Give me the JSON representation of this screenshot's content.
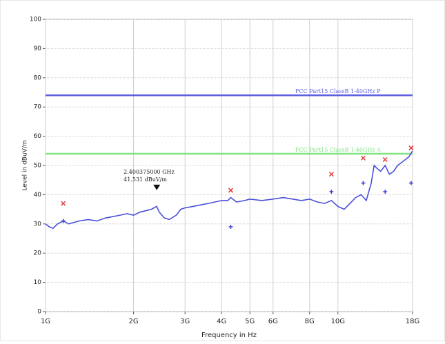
{
  "chart_data": {
    "type": "line",
    "x_label": "Frequency in Hz",
    "y_label": "Level in dBuV/m",
    "log_x": true,
    "grid": true,
    "xlim": [
      1000000000,
      18000000000
    ],
    "ylim": [
      0,
      100
    ],
    "yticks": [
      0,
      10,
      20,
      30,
      40,
      50,
      60,
      70,
      80,
      90,
      100
    ],
    "xticks": [
      {
        "value": 1000000000,
        "label": "1G"
      },
      {
        "value": 2000000000,
        "label": "2G"
      },
      {
        "value": 3000000000,
        "label": "3G"
      },
      {
        "value": 4000000000,
        "label": "4G"
      },
      {
        "value": 5000000000,
        "label": "5G"
      },
      {
        "value": 6000000000,
        "label": "6G"
      },
      {
        "value": 8000000000,
        "label": "8G"
      },
      {
        "value": 10000000000,
        "label": "10G"
      },
      {
        "value": 18000000000,
        "label": "18G"
      }
    ],
    "limits": [
      {
        "label": "FCC Part15 ClassB 1-40GHz P",
        "value": 74,
        "color": "#5b5fe0"
      },
      {
        "label": "FCC Part15 ClassB 1-40GHz A",
        "value": 54,
        "color": "#7fe37f"
      }
    ],
    "trace": {
      "color": "#4a4fd8",
      "x": [
        1000000000,
        1030000000,
        1060000000,
        1100000000,
        1150000000,
        1200000000,
        1300000000,
        1400000000,
        1500000000,
        1600000000,
        1700000000,
        1800000000,
        1900000000,
        2000000000,
        2100000000,
        2200000000,
        2300000000,
        2400000000,
        2450000000,
        2550000000,
        2650000000,
        2800000000,
        2900000000,
        3000000000,
        3200000000,
        3400000000,
        3600000000,
        3800000000,
        4000000000,
        4200000000,
        4300000000,
        4500000000,
        4800000000,
        5000000000,
        5500000000,
        6000000000,
        6500000000,
        7000000000,
        7500000000,
        8000000000,
        8500000000,
        9000000000,
        9500000000,
        10000000000,
        10500000000,
        11000000000,
        11500000000,
        12000000000,
        12500000000,
        13000000000,
        13300000000,
        13600000000,
        14000000000,
        14500000000,
        15000000000,
        15500000000,
        16000000000,
        16500000000,
        17000000000,
        17500000000,
        18000000000
      ],
      "values": [
        30,
        29,
        28.5,
        30,
        31,
        30,
        31,
        31.5,
        31,
        32,
        32.5,
        33,
        33.5,
        33,
        34,
        34.5,
        35,
        36,
        34,
        32,
        31.5,
        33,
        35,
        35.5,
        36,
        36.5,
        37,
        37.5,
        38,
        38,
        39,
        37.5,
        38,
        38.5,
        38,
        38.5,
        39,
        38.5,
        38,
        38.5,
        37.5,
        37,
        38,
        36,
        35,
        37,
        39,
        40,
        38,
        44,
        50,
        49,
        48,
        50,
        47,
        48,
        50,
        51,
        52,
        53,
        55
      ]
    },
    "peaks": {
      "color": "#e03a3a",
      "x": [
        1150000000,
        4300000000,
        9500000000,
        12200000000,
        14500000000,
        17800000000
      ],
      "values": [
        37,
        41.5,
        47,
        52.5,
        52,
        56
      ]
    },
    "averages": {
      "color": "#3a3fd0",
      "x": [
        1150000000,
        4300000000,
        9500000000,
        12200000000,
        14500000000,
        17800000000
      ],
      "values": [
        31,
        29,
        41,
        44,
        41,
        44
      ]
    },
    "marker": {
      "x": 2400375000,
      "value": 41.531,
      "freq_label": "2.400375000 GHz",
      "level_label": "41.531 dBuV/m"
    }
  }
}
